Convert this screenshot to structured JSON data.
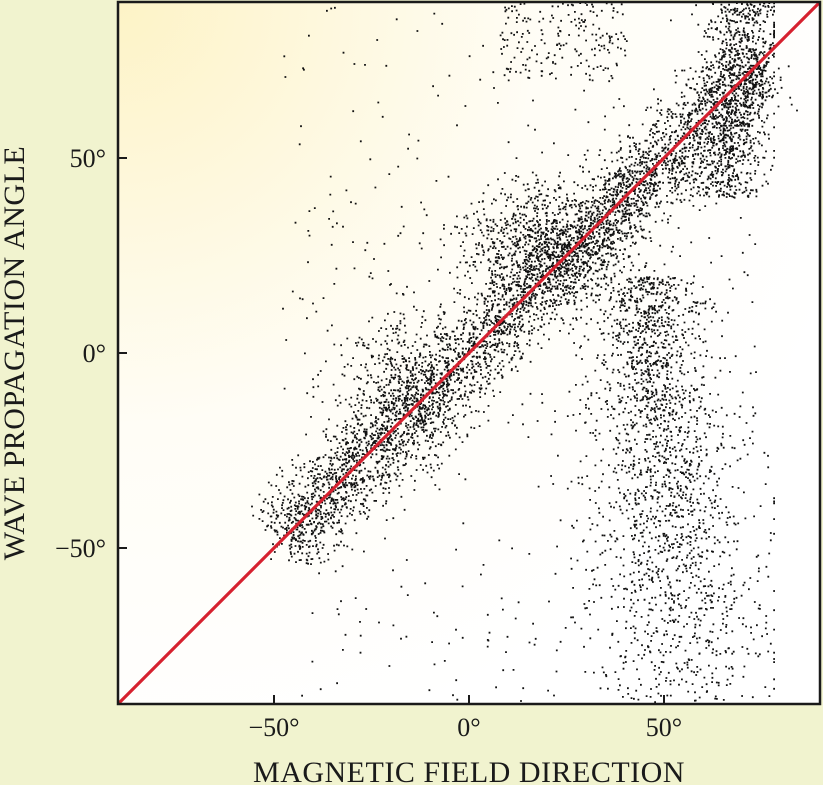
{
  "chart_data": {
    "type": "scatter",
    "title": "",
    "xlabel": "MAGNETIC FIELD DIRECTION",
    "ylabel": "WAVE PROPAGATION ANGLE",
    "xlim": [
      -90,
      90
    ],
    "ylim": [
      -90,
      90
    ],
    "x_ticks": [
      -50,
      0,
      50
    ],
    "y_ticks": [
      -50,
      0,
      50
    ],
    "x_tick_labels": [
      "−50°",
      "0°",
      "50°"
    ],
    "y_tick_labels": [
      "−50°",
      "0°",
      "50°"
    ],
    "grid": false,
    "legend": "none",
    "reference_line": {
      "from": [
        -90,
        -90
      ],
      "to": [
        90,
        90
      ],
      "color": "#d6212f"
    },
    "point_color": "#111111",
    "point_clusters": [
      {
        "region": "main-diagonal",
        "x_range": [
          -48,
          75
        ],
        "along_line_y_equals_x": true,
        "spread": 7,
        "weight": 0.46
      },
      {
        "region": "diagonal-upper-wing",
        "x_center": 20,
        "y_center": 28,
        "sx": 12,
        "sy": 8,
        "weight": 0.1
      },
      {
        "region": "diagonal-lower-wing",
        "x_center": -17,
        "y_center": -10,
        "sx": 8,
        "sy": 10,
        "weight": 0.05
      },
      {
        "region": "top-right-band",
        "x_range": [
          55,
          78
        ],
        "y_range": [
          40,
          90
        ],
        "weight": 0.1
      },
      {
        "region": "top-mid",
        "x_range": [
          8,
          40
        ],
        "y_range": [
          70,
          90
        ],
        "weight": 0.02
      },
      {
        "region": "lower-right-plume",
        "x_range": [
          25,
          78
        ],
        "y_range": [
          -90,
          20
        ],
        "weight": 0.22
      },
      {
        "region": "sparse-background",
        "x_range": [
          -48,
          78
        ],
        "y_range": [
          -90,
          90
        ],
        "weight": 0.05
      }
    ]
  }
}
